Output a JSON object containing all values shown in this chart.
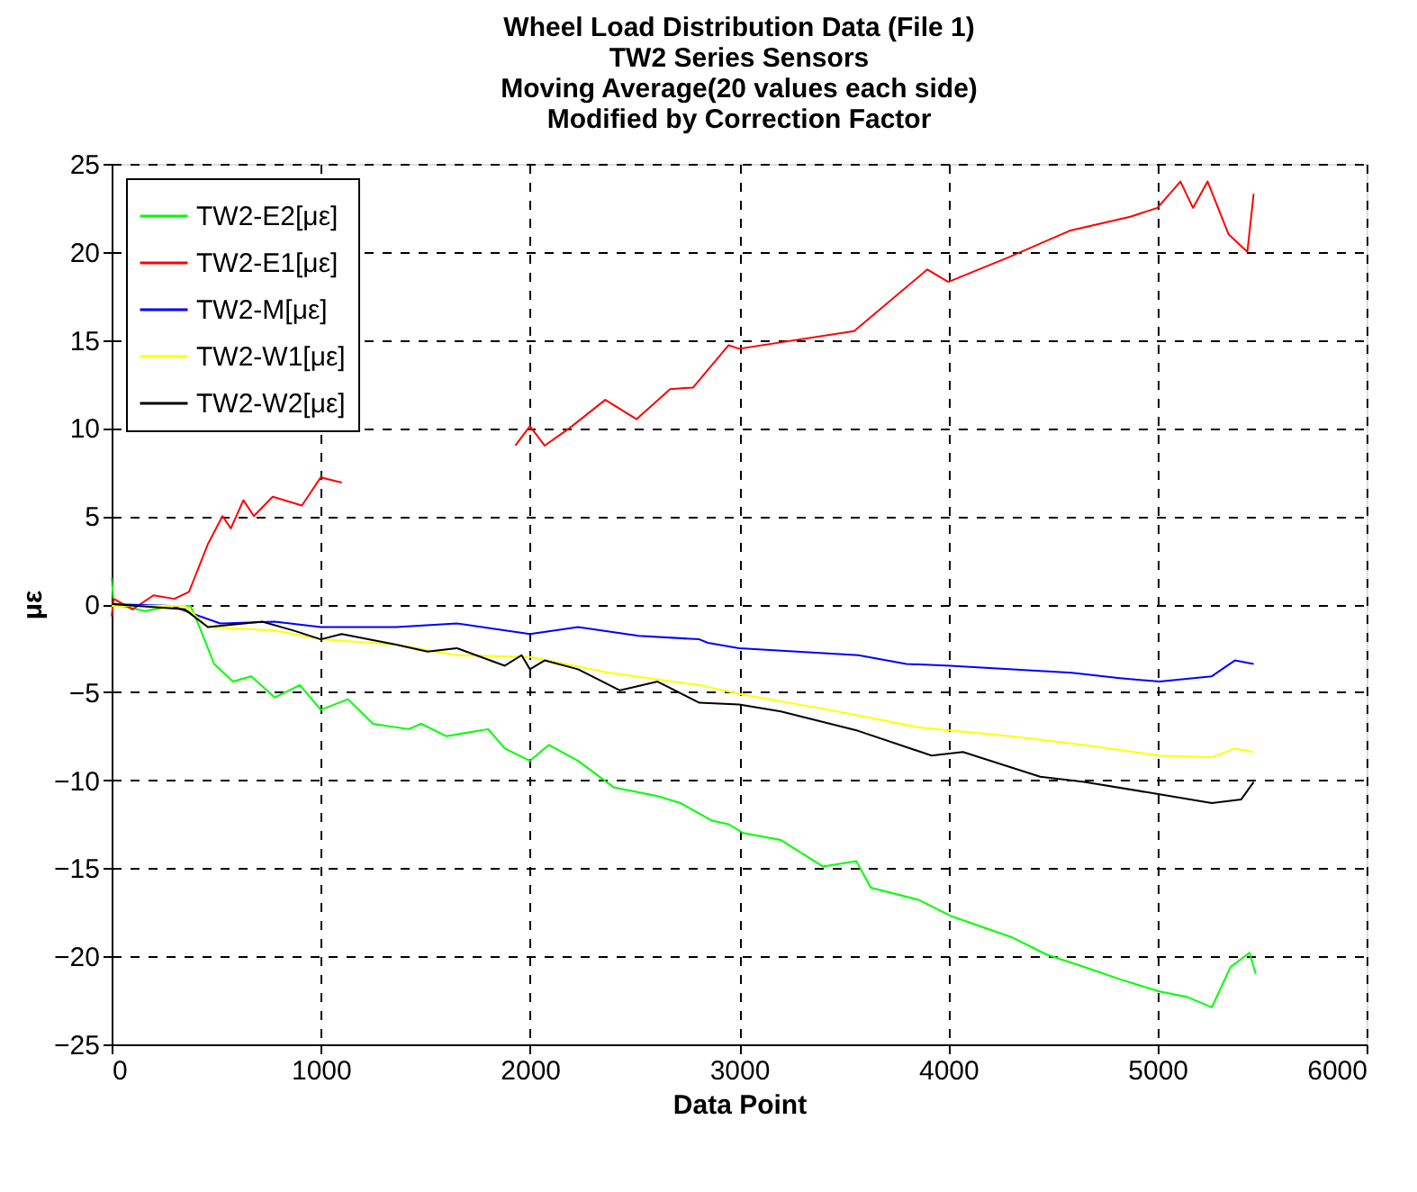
{
  "chart_data": {
    "type": "line",
    "title": [
      "Wheel Load Distribution Data (File 1)",
      "TW2 Series Sensors",
      "Moving Average(20 values each side)",
      "Modified by Correction Factor"
    ],
    "xlabel": "Data Point",
    "ylabel": "με",
    "xlim": [
      0,
      6000
    ],
    "xticks": [
      0,
      1000,
      2000,
      3000,
      4000,
      5000,
      6000
    ],
    "ylim": [
      -25,
      25
    ],
    "yticks": [
      -25,
      -20,
      -15,
      -10,
      -5,
      0,
      5,
      10,
      15,
      20,
      25
    ],
    "grid": true,
    "legend": "top left",
    "line_style": "solid",
    "marker": "none",
    "series": [
      {
        "name": "TW2-E2[με]",
        "color": "#00ff00",
        "x": [
          0,
          10,
          160,
          290,
          377,
          420,
          490,
          580,
          667,
          780,
          900,
          1000,
          1130,
          1250,
          1420,
          1480,
          1600,
          1800,
          1880,
          2000,
          2090,
          2230,
          2400,
          2610,
          2720,
          2870,
          2950,
          3020,
          3200,
          3400,
          3560,
          3630,
          3860,
          4010,
          4300,
          4470,
          4650,
          4820,
          5010,
          5140,
          5260,
          5350,
          5440,
          5470
        ],
        "values": [
          1.5,
          0,
          -0.4,
          -0.1,
          -0.1,
          -1.3,
          -3.4,
          -4.4,
          -4.1,
          -5.3,
          -4.6,
          -6,
          -5.4,
          -6.8,
          -7.1,
          -6.8,
          -7.5,
          -7.1,
          -8.2,
          -8.9,
          -8,
          -8.9,
          -10.4,
          -10.9,
          -11.3,
          -12.3,
          -12.5,
          -13,
          -13.4,
          -14.9,
          -14.6,
          -16.1,
          -16.8,
          -17.7,
          -18.9,
          -19.9,
          -20.6,
          -21.3,
          -22,
          -22.3,
          -22.9,
          -20.6,
          -19.8,
          -21
        ]
      },
      {
        "name": "TW2-E1[με]",
        "color": "#ff0000",
        "x": [
          0,
          10,
          100,
          200,
          300,
          370,
          460,
          530,
          570,
          630,
          680,
          770,
          910,
          1000,
          1100,
          1290,
          1400,
          1570,
          1930,
          2000,
          2070,
          2190,
          2360,
          2510,
          2670,
          2780,
          2950,
          3000,
          3550,
          3900,
          4000,
          4290,
          4580,
          4870,
          5000,
          5110,
          5170,
          5240,
          5340,
          5430,
          5460
        ],
        "values": [
          -0.7,
          0.3,
          -0.3,
          0.5,
          0.3,
          0.7,
          3.4,
          5,
          4.3,
          5.9,
          5,
          6.1,
          5.6,
          7.2,
          6.9,
          null,
          null,
          null,
          9,
          10.1,
          9,
          10,
          11.6,
          10.5,
          12.2,
          12.3,
          14.7,
          14.5,
          15.5,
          19,
          18.3,
          19.7,
          21.2,
          22,
          22.5,
          24,
          22.5,
          24,
          21,
          20,
          23.3
        ]
      },
      {
        "name": "TW2-M[με]",
        "color": "#0000ff",
        "x": [
          0,
          290,
          400,
          520,
          780,
          1000,
          1360,
          1650,
          2000,
          2230,
          2520,
          2810,
          2850,
          3000,
          3570,
          3800,
          4010,
          4590,
          4820,
          5010,
          5260,
          5370,
          5460
        ],
        "values": [
          0,
          -0.1,
          -0.6,
          -1.1,
          -1,
          -1.3,
          -1.3,
          -1.1,
          -1.7,
          -1.3,
          -1.8,
          -2,
          -2.2,
          -2.5,
          -2.9,
          -3.4,
          -3.5,
          -3.9,
          -4.2,
          -4.4,
          -4.1,
          -3.2,
          -3.4
        ]
      },
      {
        "name": "TW2-W1[με]",
        "color": "#ffff00",
        "x": [
          0,
          350,
          460,
          780,
          1000,
          1360,
          1650,
          2000,
          2380,
          2810,
          3000,
          3430,
          3860,
          4300,
          4650,
          5010,
          5260,
          5370,
          5460
        ],
        "values": [
          -0.1,
          -0.1,
          -1.3,
          -1.5,
          -2,
          -2.3,
          -2.9,
          -3,
          -3.9,
          -4.6,
          -5.1,
          -6,
          -7,
          -7.5,
          -8,
          -8.6,
          -8.7,
          -8.2,
          -8.4
        ]
      },
      {
        "name": "TW2-W2[με]",
        "color": "#000000",
        "x": [
          0,
          350,
          460,
          720,
          870,
          1000,
          1100,
          1360,
          1510,
          1650,
          1880,
          1960,
          2000,
          2070,
          2230,
          2430,
          2610,
          2810,
          3000,
          3200,
          3570,
          3920,
          4070,
          4440,
          4650,
          5010,
          5260,
          5400,
          5460
        ],
        "values": [
          0,
          -0.3,
          -1.3,
          -1,
          -1.5,
          -2,
          -1.7,
          -2.3,
          -2.7,
          -2.5,
          -3.5,
          -2.9,
          -3.7,
          -3.2,
          -3.7,
          -4.9,
          -4.4,
          -5.6,
          -5.7,
          -6.1,
          -7.2,
          -8.6,
          -8.4,
          -9.8,
          -10.1,
          -10.8,
          -11.3,
          -11.1,
          -10.1
        ]
      }
    ]
  }
}
